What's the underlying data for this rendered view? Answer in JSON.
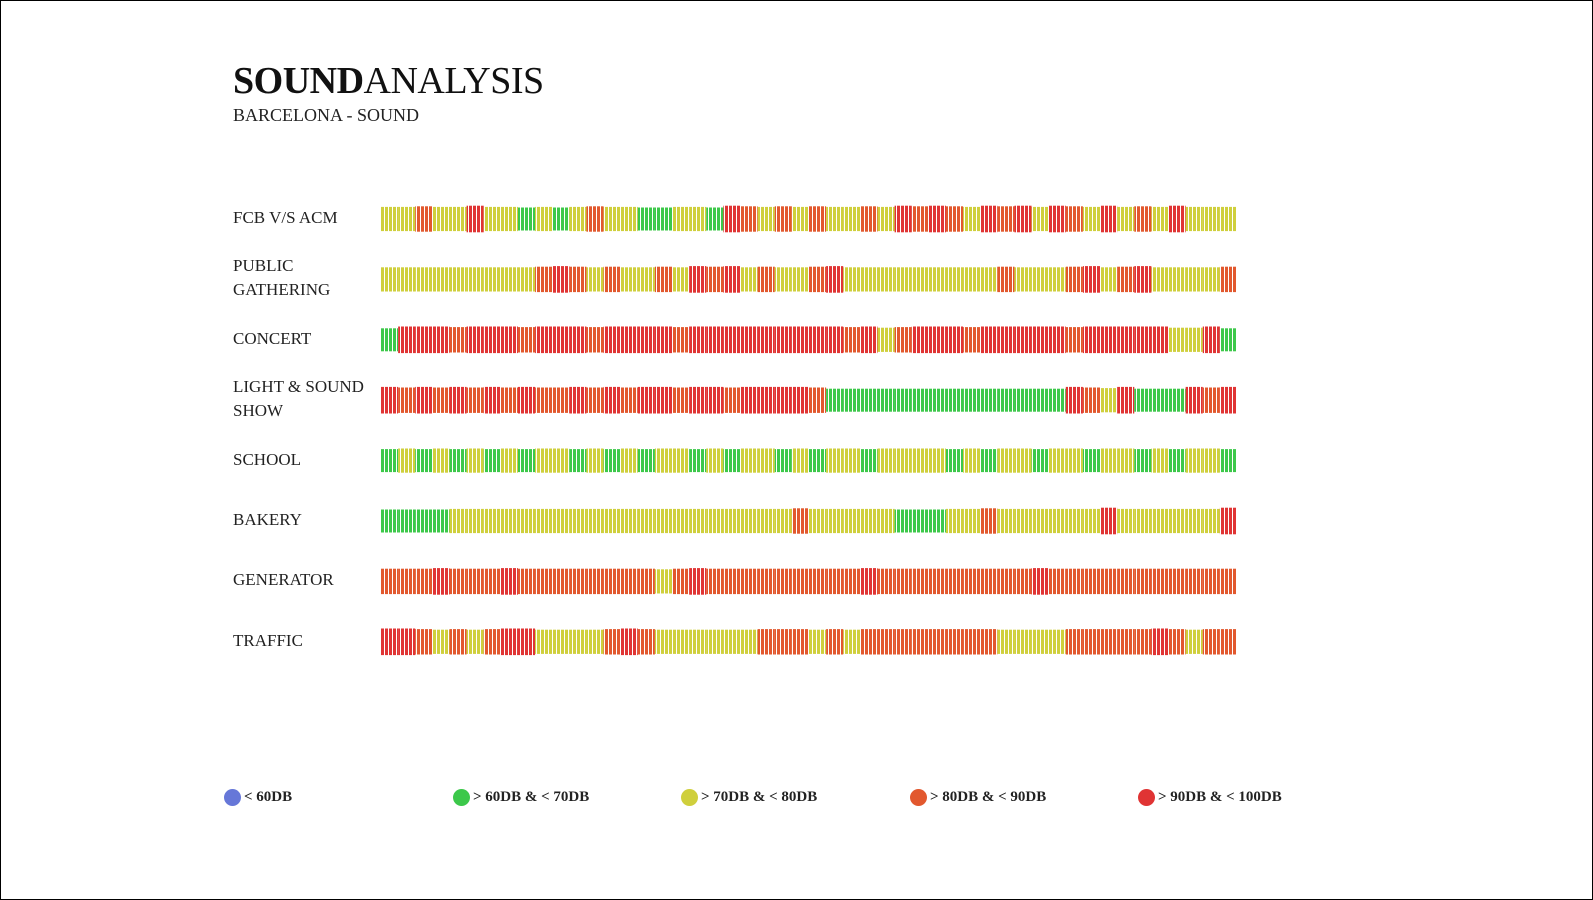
{
  "chart_data": {
    "type": "strip",
    "title": {
      "bold": "SOUND",
      "regular": "ANALYSIS"
    },
    "subtitle": "BARCELONA - SOUND",
    "rows": [
      {
        "label": "FCB V/S ACM",
        "values": [
          75,
          75,
          85,
          75,
          75,
          95,
          75,
          75,
          65,
          75,
          65,
          75,
          85,
          75,
          75,
          65,
          65,
          75,
          75,
          65,
          95,
          85,
          75,
          85,
          75,
          85,
          75,
          75,
          85,
          75,
          95,
          85,
          95,
          85,
          75,
          95,
          85,
          95,
          75,
          95,
          85,
          75,
          95,
          75,
          85,
          75,
          95,
          75,
          75,
          75
        ]
      },
      {
        "label": "PUBLIC GATHERING",
        "values": [
          75,
          75,
          75,
          75,
          75,
          75,
          75,
          75,
          75,
          85,
          95,
          85,
          75,
          85,
          75,
          75,
          85,
          75,
          95,
          85,
          95,
          75,
          85,
          75,
          75,
          85,
          95,
          75,
          75,
          75,
          75,
          75,
          75,
          75,
          75,
          75,
          85,
          75,
          75,
          75,
          85,
          95,
          75,
          85,
          95,
          75,
          75,
          75,
          75,
          85
        ]
      },
      {
        "label": "CONCERT",
        "values": [
          65,
          95,
          95,
          95,
          85,
          95,
          95,
          95,
          85,
          95,
          95,
          95,
          85,
          95,
          95,
          95,
          95,
          85,
          95,
          95,
          95,
          95,
          95,
          95,
          95,
          95,
          95,
          85,
          95,
          75,
          85,
          95,
          95,
          95,
          85,
          95,
          95,
          95,
          95,
          95,
          85,
          95,
          95,
          95,
          95,
          95,
          75,
          75,
          95,
          65
        ]
      },
      {
        "label": "LIGHT & SOUND SHOW",
        "values": [
          95,
          85,
          95,
          85,
          95,
          85,
          95,
          85,
          95,
          85,
          85,
          95,
          85,
          95,
          85,
          95,
          95,
          85,
          95,
          95,
          85,
          95,
          95,
          95,
          95,
          85,
          65,
          65,
          65,
          65,
          65,
          65,
          65,
          65,
          65,
          65,
          65,
          65,
          65,
          65,
          95,
          85,
          75,
          95,
          65,
          65,
          65,
          95,
          85,
          95
        ]
      },
      {
        "label": "SCHOOL",
        "values": [
          65,
          75,
          65,
          75,
          65,
          75,
          65,
          75,
          65,
          75,
          75,
          65,
          75,
          65,
          75,
          65,
          75,
          75,
          65,
          75,
          65,
          75,
          75,
          65,
          75,
          65,
          75,
          75,
          65,
          75,
          75,
          75,
          75,
          65,
          75,
          65,
          75,
          75,
          65,
          75,
          75,
          65,
          75,
          75,
          65,
          75,
          65,
          75,
          75,
          65
        ]
      },
      {
        "label": "BAKERY",
        "values": [
          65,
          65,
          65,
          65,
          75,
          75,
          75,
          75,
          75,
          75,
          75,
          75,
          75,
          75,
          75,
          75,
          75,
          75,
          75,
          75,
          75,
          75,
          75,
          75,
          85,
          75,
          75,
          75,
          75,
          75,
          65,
          65,
          65,
          75,
          75,
          85,
          75,
          75,
          75,
          75,
          75,
          75,
          95,
          75,
          75,
          75,
          75,
          75,
          75,
          95
        ]
      },
      {
        "label": "GENERATOR",
        "values": [
          85,
          85,
          85,
          95,
          85,
          85,
          85,
          95,
          85,
          85,
          85,
          85,
          85,
          85,
          85,
          85,
          75,
          85,
          95,
          85,
          85,
          85,
          85,
          85,
          85,
          85,
          85,
          85,
          95,
          85,
          85,
          85,
          85,
          85,
          85,
          85,
          85,
          85,
          95,
          85,
          85,
          85,
          85,
          85,
          85,
          85,
          85,
          85,
          85,
          85
        ]
      },
      {
        "label": "TRAFFIC",
        "values": [
          95,
          95,
          85,
          75,
          85,
          75,
          85,
          95,
          95,
          75,
          75,
          75,
          75,
          85,
          95,
          85,
          75,
          75,
          75,
          75,
          75,
          75,
          85,
          85,
          85,
          75,
          85,
          75,
          85,
          85,
          85,
          85,
          85,
          85,
          85,
          85,
          75,
          75,
          75,
          75,
          85,
          85,
          85,
          85,
          85,
          95,
          85,
          75,
          85,
          85
        ]
      }
    ],
    "legend": [
      {
        "label": "< 60DB",
        "color": "#6677d8",
        "max": 60
      },
      {
        "label": "> 60DB & < 70DB",
        "color": "#3cc84a",
        "max": 70
      },
      {
        "label": "> 70DB & < 80DB",
        "color": "#cfcf3c",
        "max": 80
      },
      {
        "label": "> 80DB & < 90DB",
        "color": "#e2582e",
        "max": 90
      },
      {
        "label": "> 90DB & < 100DB",
        "color": "#e03434",
        "max": 100
      }
    ]
  }
}
